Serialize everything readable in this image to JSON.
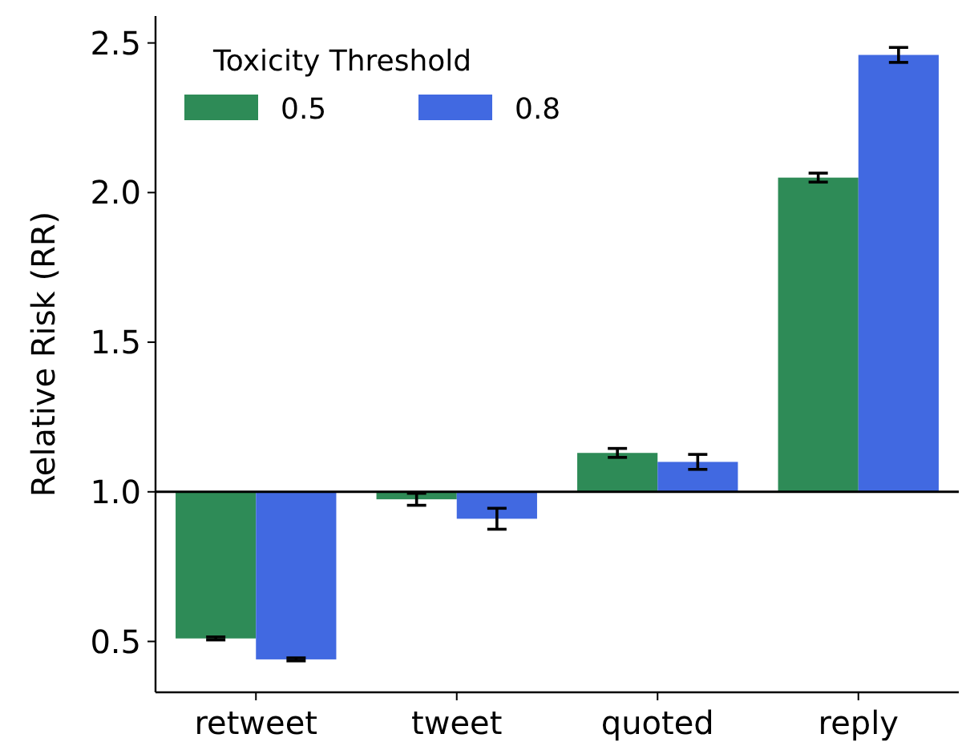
{
  "chart_data": {
    "type": "bar",
    "ylabel": "Relative Risk (RR)",
    "legend_title": "Toxicity Threshold",
    "legend": "top left",
    "categories": [
      "retweet",
      "tweet",
      "quoted",
      "reply"
    ],
    "series": [
      {
        "name": "0.5",
        "color": "#2e8b57",
        "base": [
          1,
          1,
          1,
          1
        ],
        "values": [
          -0.49,
          -0.025,
          0.13,
          1.05
        ],
        "errors": [
          0.005,
          0.02,
          0.015,
          0.015
        ]
      },
      {
        "name": "0.8",
        "color": "#4169e1",
        "base": [
          1,
          1,
          1,
          1
        ],
        "values": [
          -0.56,
          -0.09,
          0.1,
          1.46
        ],
        "errors": [
          0.005,
          0.035,
          0.025,
          0.025
        ]
      }
    ],
    "ylim": [
      0.33,
      2.59
    ],
    "yticks": [
      {
        "value": 0.5,
        "label": "0.5"
      },
      {
        "value": 1,
        "label": "1.0"
      },
      {
        "value": 1.5,
        "label": "1.5"
      },
      {
        "value": 2,
        "label": "2.0"
      },
      {
        "value": 2.5,
        "label": "2.5"
      }
    ],
    "ref_lines": [
      {
        "axis": "y",
        "value": 1,
        "color": "#000000"
      }
    ],
    "grid": false
  }
}
